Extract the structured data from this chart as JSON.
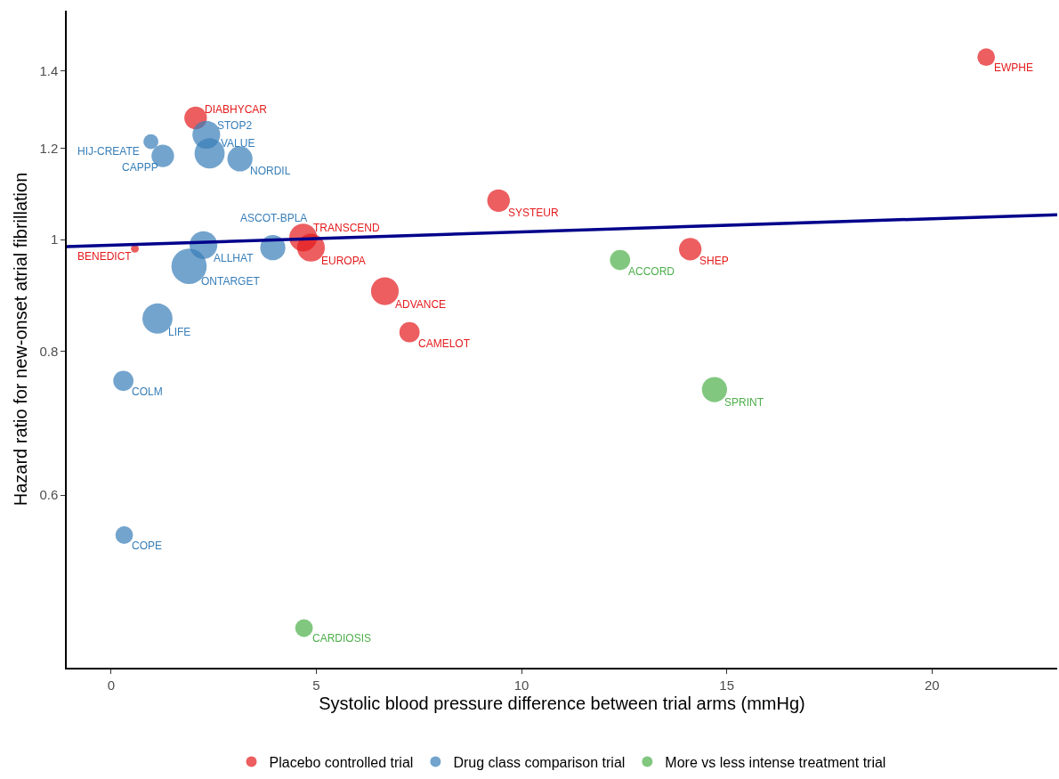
{
  "chart_data": {
    "type": "bubble",
    "xlabel": "Systolic blood pressure difference between trial arms (mmHg)",
    "ylabel": "Hazard ratio for new-onset atrial fibrillation",
    "xlim": [
      -1.08,
      23.05
    ],
    "xticks": [
      0,
      5,
      10,
      15,
      20
    ],
    "ylim": [
      0.425,
      1.58
    ],
    "yticks": [
      0.6,
      0.8,
      1,
      1.2,
      1.4
    ],
    "log": "y",
    "legend": "bottom",
    "series": [
      {
        "name": "Placebo controlled trial",
        "color": "#e41a1c",
        "x": [
          21.32,
          2.06,
          0.58,
          4.68,
          4.87,
          6.67,
          7.27,
          9.44,
          14.11
        ],
        "values": [
          1.44,
          1.275,
          0.982,
          1.004,
          0.984,
          0.902,
          0.831,
          1.081,
          0.981
        ],
        "sizes": [
          0.25,
          0.41,
          0.05,
          0.62,
          0.62,
          0.62,
          0.33,
          0.41,
          0.41
        ]
      },
      {
        "name": "Drug class comparison trial",
        "color": "#377eb8",
        "x": [
          0.97,
          2.32,
          1.26,
          2.4,
          3.14,
          2.25,
          1.9,
          3.94,
          1.13,
          0.3,
          0.32
        ],
        "values": [
          1.216,
          1.233,
          1.182,
          1.188,
          1.175,
          0.989,
          0.948,
          0.984,
          0.854,
          0.754,
          0.554
        ],
        "sizes": [
          0.18,
          0.62,
          0.41,
          0.73,
          0.51,
          0.62,
          1,
          0.51,
          0.73,
          0.33,
          0.25
        ]
      },
      {
        "name": "More vs less intense treatment trial",
        "color": "#4daf4a",
        "x": [
          12.4,
          14.7,
          4.7
        ],
        "values": [
          0.96,
          0.741,
          0.46
        ],
        "sizes": [
          0.33,
          0.51,
          0.25
        ]
      },
      {
        "type": "line",
        "marker": "none",
        "color": "#00008b",
        "x": [
          -1.08,
          23.05
        ],
        "values": [
          0.986,
          1.051
        ]
      }
    ],
    "annotations": [
      {
        "text": "EWPHE",
        "x": 21.32,
        "y": 1.44
      },
      {
        "text": "DIABHYCAR",
        "x": 2.06,
        "y": 1.275
      },
      {
        "text": "BENEDICT",
        "x": 0.58,
        "y": 0.982
      },
      {
        "text": "TRANSCEND",
        "x": 4.68,
        "y": 1.004
      },
      {
        "text": "EUROPA",
        "x": 4.87,
        "y": 0.984
      },
      {
        "text": "ADVANCE",
        "x": 6.67,
        "y": 0.902
      },
      {
        "text": "CAMELOT",
        "x": 7.27,
        "y": 0.831
      },
      {
        "text": "SYSTEUR",
        "x": 9.44,
        "y": 1.081
      },
      {
        "text": "SHEP",
        "x": 14.11,
        "y": 0.981
      },
      {
        "text": "HIJ-CREATE",
        "x": 0.97,
        "y": 1.216
      },
      {
        "text": "STOP2",
        "x": 2.32,
        "y": 1.233
      },
      {
        "text": "CAPPP",
        "x": 1.26,
        "y": 1.182
      },
      {
        "text": "VALUE",
        "x": 2.4,
        "y": 1.188
      },
      {
        "text": "NORDIL",
        "x": 3.14,
        "y": 1.175
      },
      {
        "text": "ALLHAT",
        "x": 2.25,
        "y": 0.989
      },
      {
        "text": "ONTARGET",
        "x": 1.9,
        "y": 0.948
      },
      {
        "text": "ASCOT-BPLA",
        "x": 3.94,
        "y": 0.984
      },
      {
        "text": "LIFE",
        "x": 1.13,
        "y": 0.854
      },
      {
        "text": "COLM",
        "x": 0.3,
        "y": 0.754
      },
      {
        "text": "COPE",
        "x": 0.32,
        "y": 0.554
      },
      {
        "text": "ACCORD",
        "x": 12.4,
        "y": 0.96
      },
      {
        "text": "SPRINT",
        "x": 14.7,
        "y": 0.741
      },
      {
        "text": "CARDIOSIS",
        "x": 4.7,
        "y": 0.46
      }
    ]
  }
}
